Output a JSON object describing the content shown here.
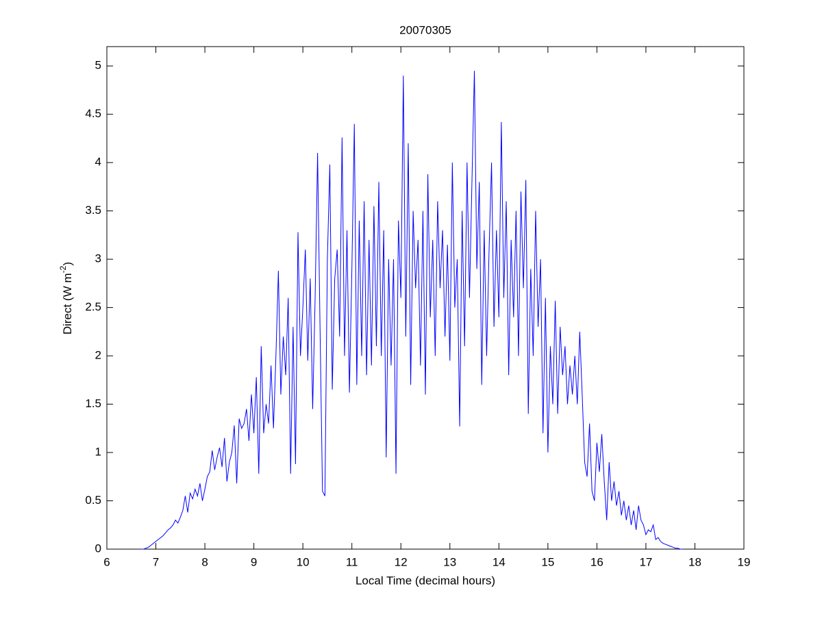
{
  "chart_data": {
    "type": "line",
    "title": "20070305",
    "x_label": "Local Time (decimal hours)",
    "y_label": {
      "text": "Direct (W m",
      "superscript": "-2",
      "suffix": ")"
    },
    "xlim": [
      6,
      19
    ],
    "xticks": [
      6,
      7,
      8,
      9,
      10,
      11,
      12,
      13,
      14,
      15,
      16,
      17,
      18,
      19
    ],
    "ylim": [
      0,
      5.2
    ],
    "yticks": [
      0,
      0.5,
      1,
      1.5,
      2,
      2.5,
      3,
      3.5,
      4,
      4.5,
      5
    ],
    "grid": false,
    "x": [
      6.7,
      6.75,
      6.8,
      6.85,
      6.9,
      6.95,
      7,
      7.05,
      7.1,
      7.15,
      7.2,
      7.25,
      7.3,
      7.35,
      7.4,
      7.45,
      7.5,
      7.55,
      7.6,
      7.65,
      7.7,
      7.75,
      7.8,
      7.85,
      7.9,
      7.95,
      8,
      8.05,
      8.1,
      8.15,
      8.2,
      8.25,
      8.3,
      8.35,
      8.4,
      8.45,
      8.5,
      8.55,
      8.6,
      8.65,
      8.7,
      8.75,
      8.8,
      8.85,
      8.9,
      8.95,
      9,
      9.05,
      9.1,
      9.15,
      9.2,
      9.25,
      9.3,
      9.35,
      9.4,
      9.45,
      9.5,
      9.55,
      9.6,
      9.65,
      9.7,
      9.75,
      9.8,
      9.85,
      9.9,
      9.95,
      10,
      10.05,
      10.1,
      10.15,
      10.2,
      10.25,
      10.3,
      10.35,
      10.4,
      10.45,
      10.5,
      10.55,
      10.6,
      10.65,
      10.7,
      10.75,
      10.8,
      10.85,
      10.9,
      10.95,
      11,
      11.05,
      11.1,
      11.15,
      11.2,
      11.25,
      11.3,
      11.35,
      11.4,
      11.45,
      11.5,
      11.55,
      11.6,
      11.65,
      11.7,
      11.75,
      11.8,
      11.85,
      11.9,
      11.95,
      12,
      12.05,
      12.1,
      12.15,
      12.2,
      12.25,
      12.3,
      12.35,
      12.4,
      12.45,
      12.5,
      12.55,
      12.6,
      12.65,
      12.7,
      12.75,
      12.8,
      12.85,
      12.9,
      12.95,
      13,
      13.05,
      13.1,
      13.15,
      13.2,
      13.25,
      13.3,
      13.35,
      13.4,
      13.45,
      13.5,
      13.55,
      13.6,
      13.65,
      13.7,
      13.75,
      13.8,
      13.85,
      13.9,
      13.95,
      14,
      14.05,
      14.1,
      14.15,
      14.2,
      14.25,
      14.3,
      14.35,
      14.4,
      14.45,
      14.5,
      14.55,
      14.6,
      14.65,
      14.7,
      14.75,
      14.8,
      14.85,
      14.9,
      14.95,
      15,
      15.05,
      15.1,
      15.15,
      15.2,
      15.25,
      15.3,
      15.35,
      15.4,
      15.45,
      15.5,
      15.55,
      15.6,
      15.65,
      15.7,
      15.75,
      15.8,
      15.85,
      15.9,
      15.95,
      16,
      16.05,
      16.1,
      16.15,
      16.2,
      16.25,
      16.3,
      16.35,
      16.4,
      16.45,
      16.5,
      16.55,
      16.6,
      16.65,
      16.7,
      16.75,
      16.8,
      16.85,
      16.9,
      16.95,
      17,
      17.05,
      17.1,
      17.15,
      17.2,
      17.25,
      17.3,
      17.35,
      17.4,
      17.45,
      17.5,
      17.55,
      17.6,
      17.65,
      17.7,
      17.75
    ],
    "series": [
      {
        "color": "#0000ff",
        "values": [
          0,
          0,
          0.01,
          0.02,
          0.04,
          0.06,
          0.08,
          0.1,
          0.12,
          0.14,
          0.17,
          0.2,
          0.22,
          0.25,
          0.3,
          0.27,
          0.33,
          0.4,
          0.55,
          0.38,
          0.58,
          0.52,
          0.62,
          0.55,
          0.68,
          0.5,
          0.62,
          0.75,
          0.8,
          1.02,
          0.82,
          0.95,
          1.05,
          0.85,
          1.15,
          0.7,
          0.9,
          1.0,
          1.28,
          0.68,
          1.35,
          1.25,
          1.3,
          1.45,
          1.12,
          1.6,
          1.2,
          1.78,
          0.78,
          2.1,
          1.2,
          1.5,
          1.3,
          1.9,
          1.25,
          2.0,
          2.88,
          1.6,
          2.2,
          1.8,
          2.6,
          0.78,
          2.3,
          0.88,
          3.28,
          2.0,
          2.5,
          3.1,
          1.95,
          2.8,
          1.45,
          2.6,
          4.1,
          2.3,
          0.6,
          0.55,
          3.0,
          3.98,
          1.65,
          2.8,
          3.1,
          2.2,
          4.26,
          2.0,
          3.3,
          1.62,
          2.9,
          4.4,
          1.7,
          3.4,
          2.0,
          3.6,
          1.8,
          3.2,
          1.9,
          3.55,
          2.1,
          3.8,
          2.0,
          3.3,
          0.95,
          3.0,
          1.9,
          3.0,
          0.78,
          3.4,
          2.6,
          4.9,
          2.2,
          4.2,
          1.7,
          3.5,
          2.7,
          3.2,
          1.9,
          3.5,
          1.6,
          3.88,
          2.4,
          3.2,
          2.0,
          3.6,
          2.7,
          3.3,
          2.2,
          3.15,
          1.95,
          4.0,
          2.5,
          3.0,
          1.27,
          3.5,
          2.1,
          4.0,
          2.6,
          3.8,
          4.95,
          2.9,
          3.8,
          1.7,
          3.3,
          2.0,
          3.1,
          4.0,
          2.3,
          3.3,
          2.4,
          4.42,
          2.6,
          3.6,
          1.8,
          3.2,
          2.4,
          3.5,
          2.0,
          3.7,
          2.7,
          3.82,
          1.4,
          2.9,
          2.0,
          3.5,
          2.3,
          3.0,
          1.2,
          2.6,
          1.0,
          2.1,
          1.5,
          2.57,
          1.4,
          2.3,
          1.8,
          2.1,
          1.5,
          1.9,
          1.6,
          2.0,
          1.5,
          2.25,
          1.6,
          0.9,
          0.75,
          1.3,
          0.6,
          0.5,
          1.1,
          0.8,
          1.19,
          0.7,
          0.3,
          0.9,
          0.5,
          0.7,
          0.45,
          0.6,
          0.35,
          0.5,
          0.3,
          0.45,
          0.25,
          0.4,
          0.2,
          0.45,
          0.3,
          0.25,
          0.15,
          0.2,
          0.18,
          0.25,
          0.1,
          0.12,
          0.08,
          0.06,
          0.05,
          0.04,
          0.03,
          0.02,
          0.01,
          0.01,
          0,
          0
        ]
      }
    ]
  }
}
